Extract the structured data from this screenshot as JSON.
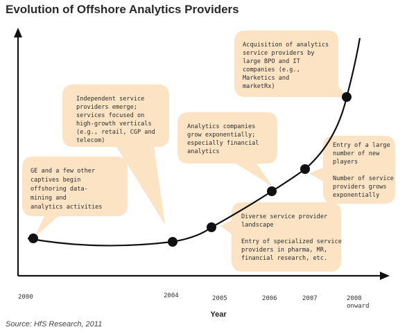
{
  "title": "Evolution of Offshore Analytics Providers",
  "x_axis_label": "Year",
  "source": "Source: HfS Research, 2011",
  "colors": {
    "callout": "#fbe3c4",
    "line": "#111111",
    "marker": "#111111"
  },
  "years": [
    "2000",
    "2004",
    "2005",
    "2006",
    "2007",
    "2008\nonward"
  ],
  "callouts": [
    {
      "id": "ge",
      "lines": [
        "GE and a few other",
        "captives begin",
        "offshoring data-",
        "mining and",
        "analytics activities"
      ]
    },
    {
      "id": "independent",
      "lines": [
        "Independent service",
        "providers emerge;",
        "services focused on",
        "high-growth verticals",
        "(e.g., retail, CGP and",
        "telecom)"
      ]
    },
    {
      "id": "diverse",
      "lines": [
        "Diverse service provider",
        "landscape",
        "",
        "Entry of specialized service",
        "providers in pharma, MR,",
        "financial research, etc."
      ]
    },
    {
      "id": "exponential",
      "lines": [
        "Analytics companies",
        "grow exponentially;",
        "especially financial",
        "analytics"
      ]
    },
    {
      "id": "new-players",
      "lines": [
        "Entry of a large",
        "number of new",
        "players",
        "",
        "Number of service",
        "providers grows",
        "exponentially"
      ]
    },
    {
      "id": "acquisition",
      "lines": [
        "Acquisition of analytics",
        "service providers by",
        "large BPO and IT",
        "companies (e.g.,",
        "Marketics and",
        "marketRx)"
      ]
    }
  ]
}
